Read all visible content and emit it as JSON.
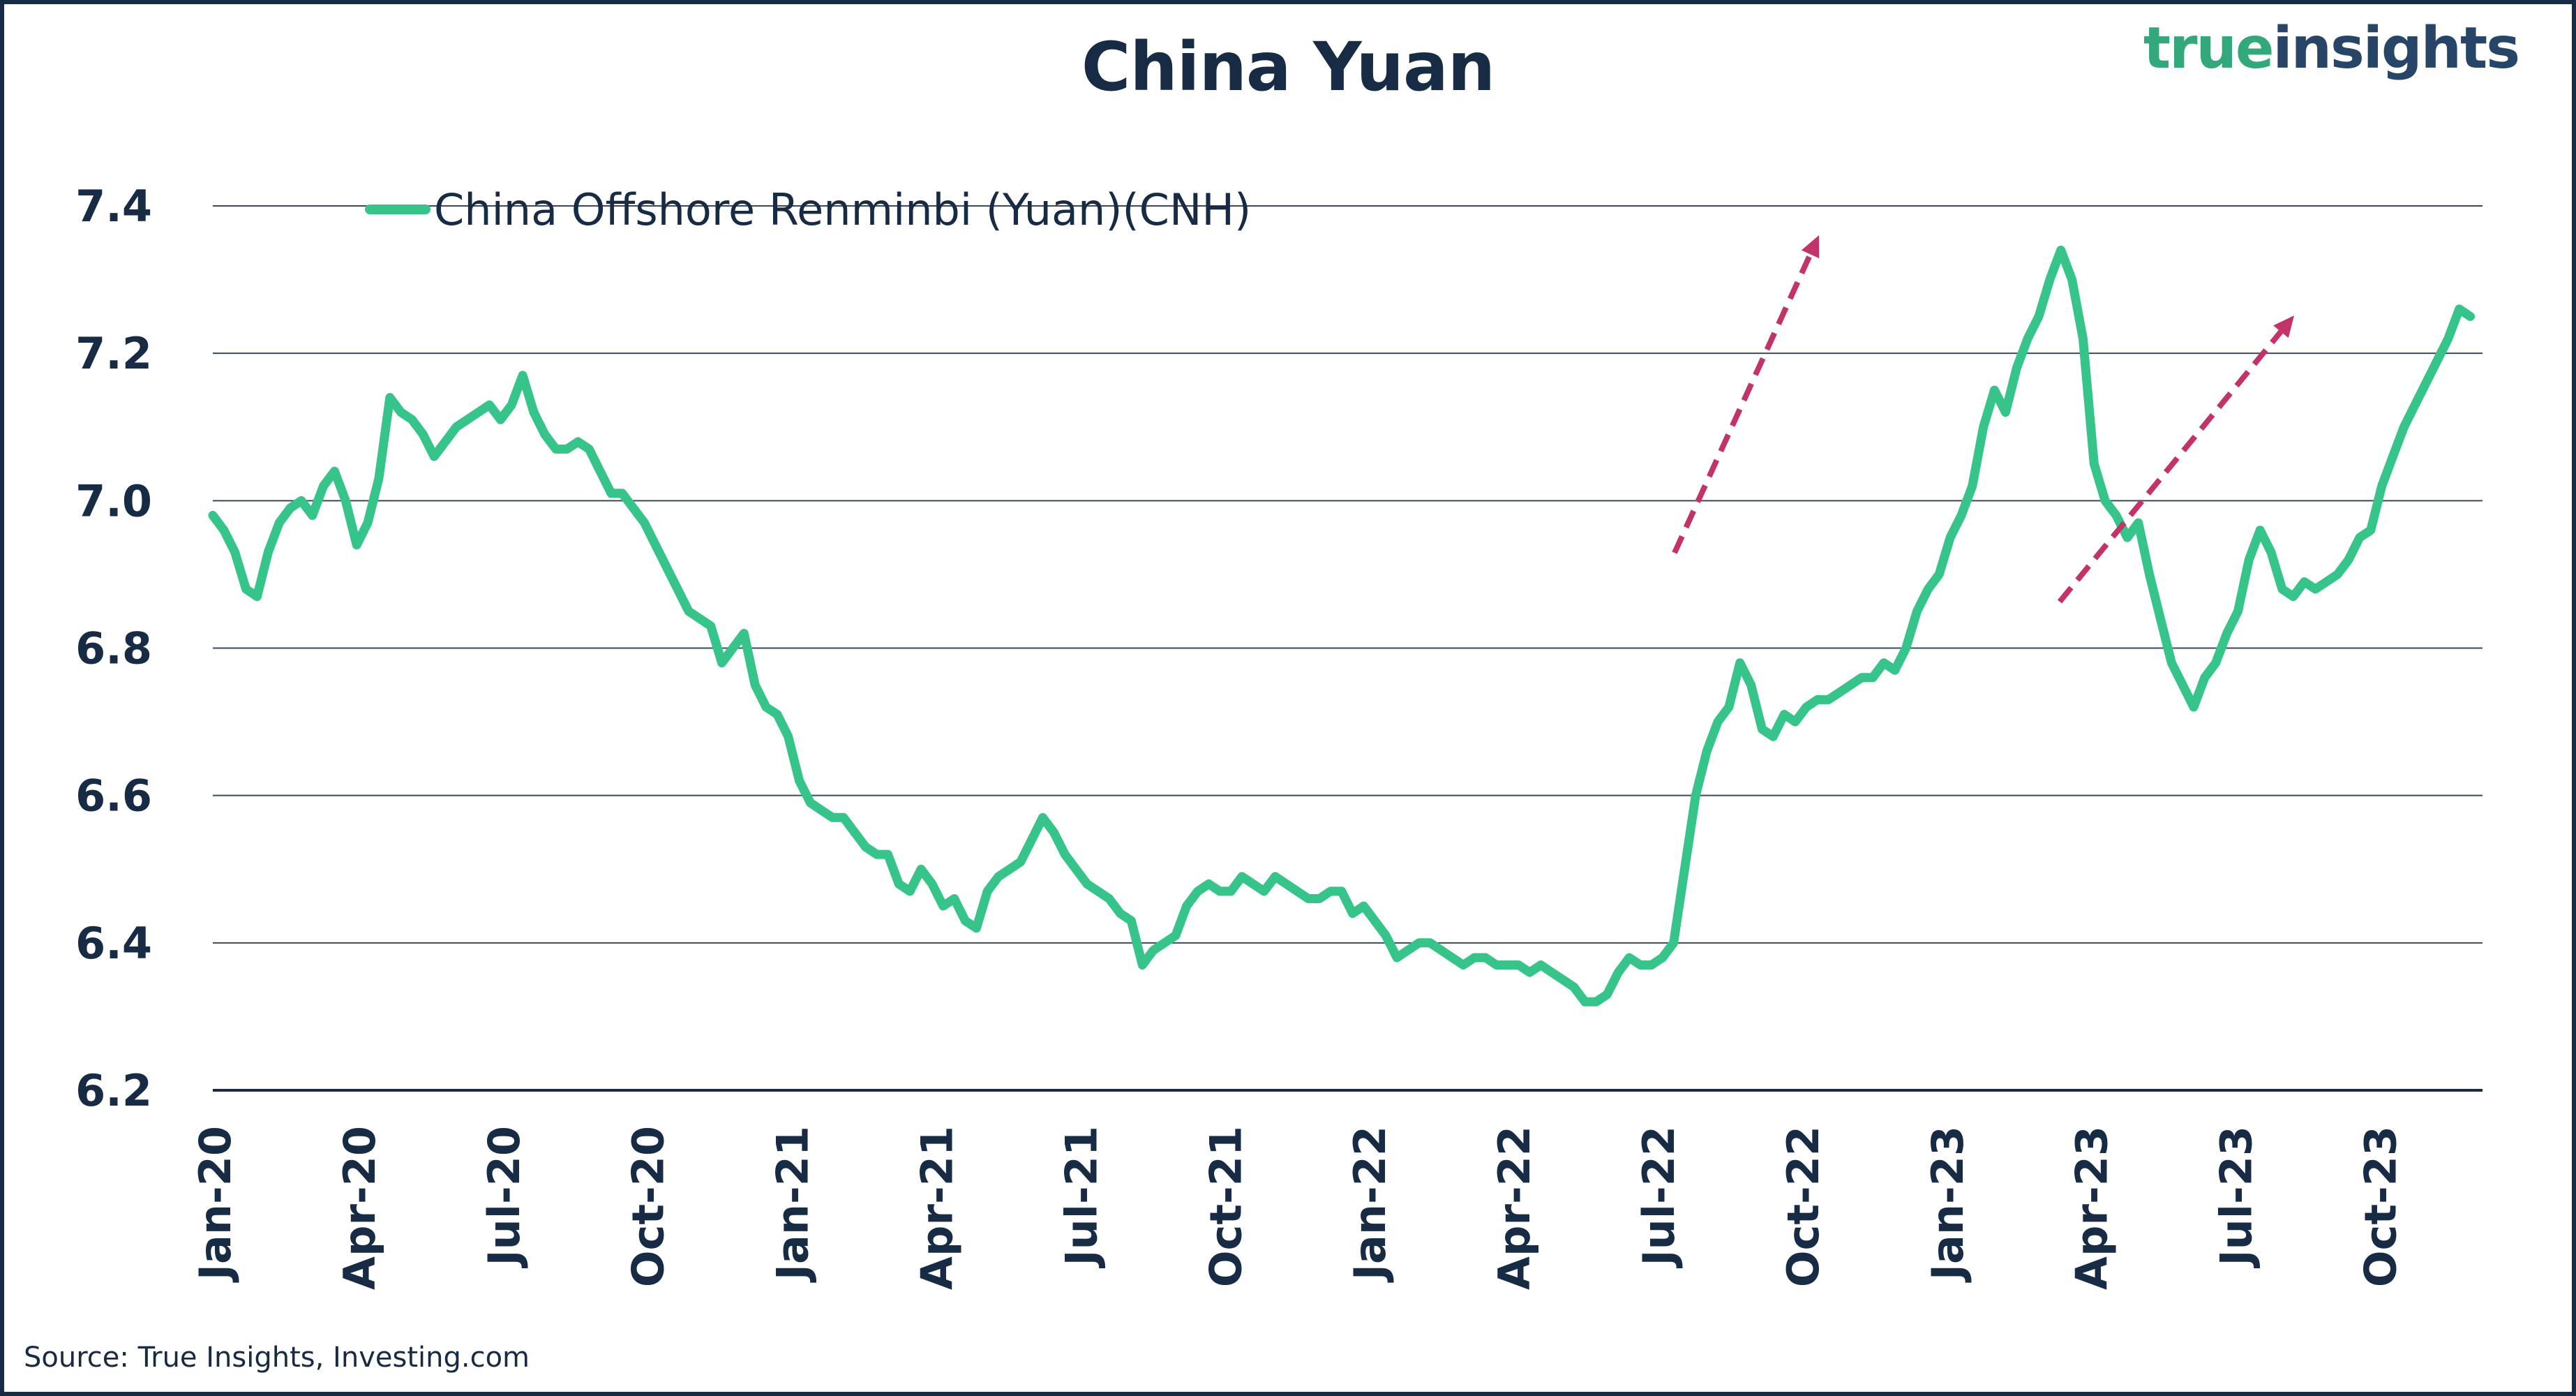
{
  "header": {
    "title": "China Yuan",
    "logo_part1": "true",
    "logo_part2": "insights"
  },
  "footer": {
    "source": "Source: True Insights, Investing.com"
  },
  "colors": {
    "series": "#36c48a",
    "arrow": "#c2336a",
    "text": "#172b45",
    "grid": "#3a4a5a",
    "logo_green": "#33a87a",
    "logo_navy": "#274566"
  },
  "chart_data": {
    "type": "line",
    "title": "China Yuan",
    "xlabel": "",
    "ylabel": "",
    "ylim": [
      6.2,
      7.4
    ],
    "yticks": [
      "7.4",
      "7.2",
      "7.0",
      "6.8",
      "6.6",
      "6.4",
      "6.2"
    ],
    "xticks": [
      "Jan-20",
      "Apr-20",
      "Jul-20",
      "Oct-20",
      "Jan-21",
      "Apr-21",
      "Jul-21",
      "Oct-21",
      "Jan-22",
      "Apr-22",
      "Jul-22",
      "Oct-22",
      "Jan-23",
      "Apr-23",
      "Jul-23",
      "Oct-23"
    ],
    "grid": true,
    "legend_position": "top-left",
    "x_frequency": "weekly",
    "x_start": "2020-01-03",
    "series": [
      {
        "name": "China Offshore Renminbi (Yuan)(CNH)",
        "values": [
          6.98,
          6.96,
          6.93,
          6.88,
          6.87,
          6.93,
          6.97,
          6.99,
          7.0,
          6.98,
          7.02,
          7.04,
          7.0,
          6.94,
          6.97,
          7.03,
          7.14,
          7.12,
          7.11,
          7.09,
          7.06,
          7.08,
          7.1,
          7.11,
          7.12,
          7.13,
          7.11,
          7.13,
          7.17,
          7.12,
          7.09,
          7.07,
          7.07,
          7.08,
          7.07,
          7.04,
          7.01,
          7.01,
          6.99,
          6.97,
          6.94,
          6.91,
          6.88,
          6.85,
          6.84,
          6.83,
          6.78,
          6.8,
          6.82,
          6.75,
          6.72,
          6.71,
          6.68,
          6.62,
          6.59,
          6.58,
          6.57,
          6.57,
          6.55,
          6.53,
          6.52,
          6.52,
          6.48,
          6.47,
          6.5,
          6.48,
          6.45,
          6.46,
          6.43,
          6.42,
          6.47,
          6.49,
          6.5,
          6.51,
          6.54,
          6.57,
          6.55,
          6.52,
          6.5,
          6.48,
          6.47,
          6.46,
          6.44,
          6.43,
          6.37,
          6.39,
          6.4,
          6.41,
          6.45,
          6.47,
          6.48,
          6.47,
          6.47,
          6.49,
          6.48,
          6.47,
          6.49,
          6.48,
          6.47,
          6.46,
          6.46,
          6.47,
          6.47,
          6.44,
          6.45,
          6.43,
          6.41,
          6.38,
          6.39,
          6.4,
          6.4,
          6.39,
          6.38,
          6.37,
          6.38,
          6.38,
          6.37,
          6.37,
          6.37,
          6.36,
          6.37,
          6.36,
          6.35,
          6.34,
          6.32,
          6.32,
          6.33,
          6.36,
          6.38,
          6.37,
          6.37,
          6.38,
          6.4,
          6.5,
          6.6,
          6.66,
          6.7,
          6.72,
          6.78,
          6.75,
          6.69,
          6.68,
          6.71,
          6.7,
          6.72,
          6.73,
          6.73,
          6.74,
          6.75,
          6.76,
          6.76,
          6.78,
          6.77,
          6.8,
          6.85,
          6.88,
          6.9,
          6.95,
          6.98,
          7.02,
          7.1,
          7.15,
          7.12,
          7.18,
          7.22,
          7.25,
          7.3,
          7.34,
          7.3,
          7.22,
          7.05,
          7.0,
          6.98,
          6.95,
          6.97,
          6.9,
          6.84,
          6.78,
          6.75,
          6.72,
          6.76,
          6.78,
          6.82,
          6.85,
          6.92,
          6.96,
          6.93,
          6.88,
          6.87,
          6.89,
          6.88,
          6.89,
          6.9,
          6.92,
          6.95,
          6.96,
          7.02,
          7.06,
          7.1,
          7.13,
          7.16,
          7.19,
          7.22,
          7.26,
          7.25
        ]
      }
    ],
    "annotations": [
      {
        "type": "dashed-arrow",
        "color": "#c2336a",
        "from_date": "Jul-22",
        "from_value": 6.77,
        "to_date": "Oct-22",
        "to_value": 7.34
      },
      {
        "type": "dashed-arrow",
        "color": "#c2336a",
        "from_date": "Mar-23",
        "from_value": 6.71,
        "to_date": "Aug-23",
        "to_value": 7.23
      }
    ]
  }
}
